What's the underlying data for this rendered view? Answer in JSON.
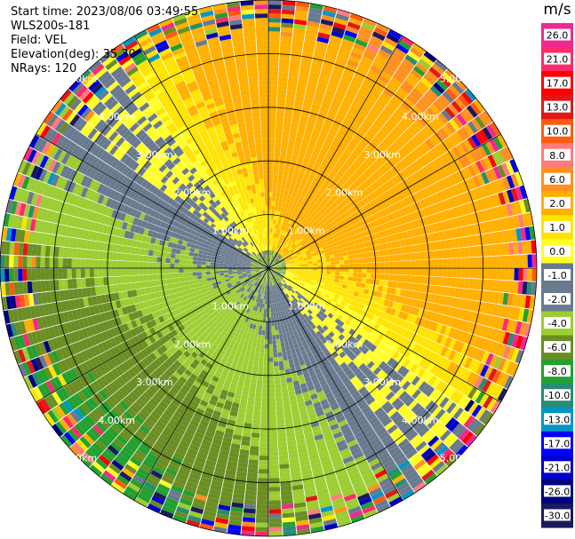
{
  "header": {
    "start_time": "Start time: 2023/08/06 03:49:55",
    "instrument": "WLS200s-181",
    "field": "Field: VEL",
    "elevation": "Elevation(deg): 35.30",
    "nrays": "NRays: 120"
  },
  "colorbar": {
    "unit": "m/s",
    "ticks": [
      "26.0",
      "21.0",
      "17.0",
      "13.0",
      "10.0",
      "8.0",
      "6.0",
      "2.0",
      "1.0",
      "0.0",
      "-1.0",
      "-2.0",
      "-4.0",
      "-6.0",
      "-8.0",
      "-10.0",
      "-13.0",
      "-17.0",
      "-21.0",
      "-26.0",
      "-30.0"
    ],
    "colors": [
      "#f02890",
      "#ff2a6a",
      "#ff0000",
      "#e01818",
      "#ff5a10",
      "#ff7c7c",
      "#ff9020",
      "#ffb000",
      "#ffe400",
      "#ffff24",
      "#6a7a8e",
      "#6a7a8e",
      "#9ccd32",
      "#6b8e23",
      "#22a030",
      "#288c72",
      "#0096c8",
      "#0000ff",
      "#0000c8",
      "#000080",
      "#1a1a5e"
    ]
  },
  "chart_data": {
    "type": "ppi",
    "title": "",
    "field": "VEL",
    "units": "m/s",
    "nrays": 120,
    "max_range_km": 5.0,
    "range_ring_labels": [
      "1.00km",
      "2.00km",
      "3.00km",
      "4.00km",
      "5.00km"
    ],
    "range_rings_km": [
      1,
      2,
      3,
      4,
      5
    ],
    "azimuth_spoke_step_deg": 30,
    "velocity_bounds": [
      -30,
      -26,
      -21,
      -17,
      -13,
      -10,
      -8,
      -6,
      -4,
      -2,
      -1,
      0,
      1,
      2,
      6,
      8,
      10,
      13,
      17,
      21,
      26,
      30
    ],
    "pattern": {
      "receding_sector_center_deg": 45,
      "approaching_sector_center_deg": 225,
      "near_range_noise_km": 0.3,
      "far_range_noise_start_km": 4.3
    }
  }
}
